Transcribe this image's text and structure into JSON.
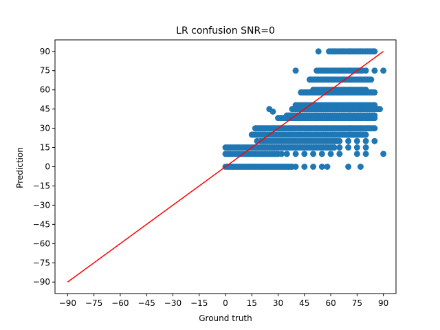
{
  "chart_data": {
    "type": "scatter",
    "title": "LR confusion SNR=0",
    "xlabel": "Ground truth",
    "ylabel": "Prediction",
    "xlim": [
      -97.2,
      97.2
    ],
    "ylim": [
      -99,
      99
    ],
    "xticks": [
      -90,
      -75,
      -60,
      -45,
      -30,
      -15,
      0,
      15,
      30,
      45,
      60,
      75,
      90
    ],
    "yticks": [
      -90,
      -75,
      -60,
      -45,
      -30,
      -15,
      0,
      15,
      30,
      45,
      60,
      75,
      90
    ],
    "grid": false,
    "colors": {
      "points": "#1f77b4",
      "reference_line": "#ff0000"
    },
    "reference_line": {
      "x": [
        -90,
        90
      ],
      "y": [
        -90,
        90
      ]
    },
    "points": {
      "bands": [
        {
          "y": 0,
          "xmin": 0,
          "xmax": 38,
          "extra_x": [
            40,
            45,
            50,
            55,
            58,
            70,
            77
          ]
        },
        {
          "y": 10,
          "xmin": 0,
          "xmax": 30,
          "extra_x": [
            32,
            35,
            40,
            45,
            50,
            55,
            60,
            65,
            75,
            80,
            90
          ]
        },
        {
          "y": 15,
          "xmin": 0,
          "xmax": 62,
          "extra_x": [
            65,
            70,
            75,
            80
          ]
        },
        {
          "y": 20,
          "xmin": 20,
          "xmax": 65,
          "extra_x": [
            18,
            70,
            75,
            80,
            85
          ]
        },
        {
          "y": 25,
          "xmin": 15,
          "xmax": 80,
          "extra_x": []
        },
        {
          "y": 30,
          "xmin": 17,
          "xmax": 85,
          "extra_x": []
        },
        {
          "y": 38,
          "xmin": 30,
          "xmax": 85,
          "extra_x": []
        },
        {
          "y": 40,
          "xmin": 35,
          "xmax": 85,
          "extra_x": []
        },
        {
          "y": 45,
          "xmin": 38,
          "xmax": 88,
          "extra_x": []
        },
        {
          "y": 48,
          "xmin": 40,
          "xmax": 85,
          "extra_x": []
        },
        {
          "y": 58,
          "xmin": 43,
          "xmax": 85,
          "extra_x": []
        },
        {
          "y": 60,
          "xmin": 50,
          "xmax": 80,
          "extra_x": []
        },
        {
          "y": 68,
          "xmin": 48,
          "xmax": 83,
          "extra_x": []
        },
        {
          "y": 75,
          "xmin": 52,
          "xmax": 78,
          "extra_x": [
            40,
            80,
            85,
            90
          ]
        },
        {
          "y": 90,
          "xmin": 59,
          "xmax": 85,
          "extra_x": [
            53
          ]
        }
      ],
      "isolated": [
        {
          "x": 25,
          "y": 45
        },
        {
          "x": 27,
          "y": 43
        }
      ]
    }
  }
}
